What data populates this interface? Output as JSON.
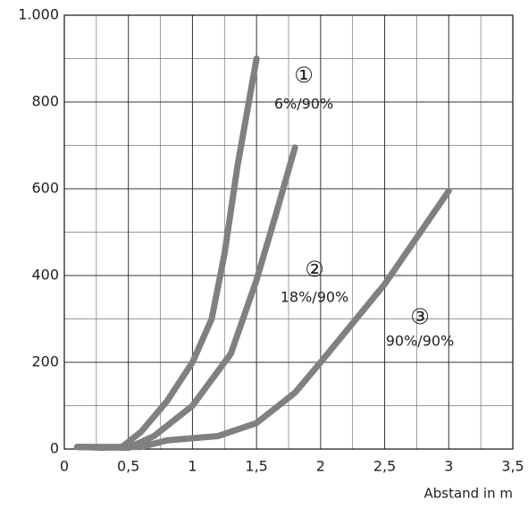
{
  "chart_data": {
    "type": "line",
    "x_label": "Abstand in m",
    "xlim": [
      0,
      3.5
    ],
    "ylim": [
      0,
      1000
    ],
    "xticks": [
      0,
      {
        "value": 0.5,
        "label": "0,5"
      },
      1,
      {
        "value": 1.5,
        "label": "1,5"
      },
      2,
      {
        "value": 2.5,
        "label": "2,5"
      },
      3,
      {
        "value": 3.5,
        "label": "3,5"
      }
    ],
    "yticks": [
      0,
      200,
      400,
      600,
      800,
      {
        "value": 1000,
        "label": "1.000"
      }
    ],
    "grid": true,
    "series": [
      {
        "name": "6%/90%",
        "marker": "①",
        "color": "#808080",
        "x": [
          0.1,
          0.3,
          0.45,
          0.6,
          0.8,
          1.0,
          1.15,
          1.25,
          1.35,
          1.5
        ],
        "y": [
          5,
          3,
          5,
          40,
          110,
          200,
          300,
          450,
          650,
          900
        ]
      },
      {
        "name": "18%/90%",
        "marker": "②",
        "color": "#808080",
        "x": [
          0.1,
          0.5,
          0.7,
          1.0,
          1.3,
          1.5,
          1.65,
          1.8
        ],
        "y": [
          5,
          3,
          30,
          100,
          220,
          390,
          540,
          695
        ]
      },
      {
        "name": "90%/90%",
        "marker": "③",
        "color": "#808080",
        "x": [
          0.1,
          0.6,
          0.8,
          1.2,
          1.5,
          1.8,
          2.0,
          2.5,
          3.0
        ],
        "y": [
          5,
          5,
          20,
          30,
          60,
          130,
          200,
          380,
          595
        ]
      }
    ]
  }
}
